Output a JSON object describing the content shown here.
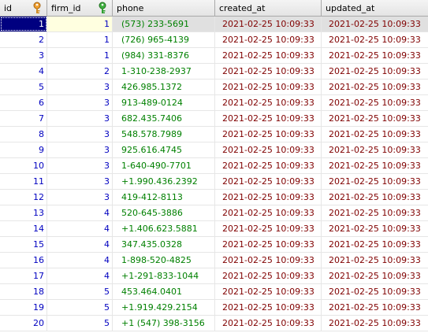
{
  "table": {
    "columns": {
      "id": "id",
      "firm_id": "firm_id",
      "phone": "phone",
      "created_at": "created_at",
      "updated_at": "updated_at"
    },
    "primary_key_icon": "primary-key-icon",
    "foreign_key_icon": "foreign-key-icon",
    "rows": [
      {
        "id": "1",
        "firm_id": "1",
        "phone": "(573) 233-5691",
        "created_at": "2021-02-25 10:09:33",
        "updated_at": "2021-02-25 10:09:33"
      },
      {
        "id": "2",
        "firm_id": "1",
        "phone": "(726) 965-4139",
        "created_at": "2021-02-25 10:09:33",
        "updated_at": "2021-02-25 10:09:33"
      },
      {
        "id": "3",
        "firm_id": "1",
        "phone": "(984) 331-8376",
        "created_at": "2021-02-25 10:09:33",
        "updated_at": "2021-02-25 10:09:33"
      },
      {
        "id": "4",
        "firm_id": "2",
        "phone": "1-310-238-2937",
        "created_at": "2021-02-25 10:09:33",
        "updated_at": "2021-02-25 10:09:33"
      },
      {
        "id": "5",
        "firm_id": "3",
        "phone": "426.985.1372",
        "created_at": "2021-02-25 10:09:33",
        "updated_at": "2021-02-25 10:09:33"
      },
      {
        "id": "6",
        "firm_id": "3",
        "phone": "913-489-0124",
        "created_at": "2021-02-25 10:09:33",
        "updated_at": "2021-02-25 10:09:33"
      },
      {
        "id": "7",
        "firm_id": "3",
        "phone": "682.435.7406",
        "created_at": "2021-02-25 10:09:33",
        "updated_at": "2021-02-25 10:09:33"
      },
      {
        "id": "8",
        "firm_id": "3",
        "phone": "548.578.7989",
        "created_at": "2021-02-25 10:09:33",
        "updated_at": "2021-02-25 10:09:33"
      },
      {
        "id": "9",
        "firm_id": "3",
        "phone": "925.616.4745",
        "created_at": "2021-02-25 10:09:33",
        "updated_at": "2021-02-25 10:09:33"
      },
      {
        "id": "10",
        "firm_id": "3",
        "phone": "1-640-490-7701",
        "created_at": "2021-02-25 10:09:33",
        "updated_at": "2021-02-25 10:09:33"
      },
      {
        "id": "11",
        "firm_id": "3",
        "phone": "+1.990.436.2392",
        "created_at": "2021-02-25 10:09:33",
        "updated_at": "2021-02-25 10:09:33"
      },
      {
        "id": "12",
        "firm_id": "3",
        "phone": "419-412-8113",
        "created_at": "2021-02-25 10:09:33",
        "updated_at": "2021-02-25 10:09:33"
      },
      {
        "id": "13",
        "firm_id": "4",
        "phone": "520-645-3886",
        "created_at": "2021-02-25 10:09:33",
        "updated_at": "2021-02-25 10:09:33"
      },
      {
        "id": "14",
        "firm_id": "4",
        "phone": "+1.406.623.5881",
        "created_at": "2021-02-25 10:09:33",
        "updated_at": "2021-02-25 10:09:33"
      },
      {
        "id": "15",
        "firm_id": "4",
        "phone": "347.435.0328",
        "created_at": "2021-02-25 10:09:33",
        "updated_at": "2021-02-25 10:09:33"
      },
      {
        "id": "16",
        "firm_id": "4",
        "phone": "1-898-520-4825",
        "created_at": "2021-02-25 10:09:33",
        "updated_at": "2021-02-25 10:09:33"
      },
      {
        "id": "17",
        "firm_id": "4",
        "phone": "+1-291-833-1044",
        "created_at": "2021-02-25 10:09:33",
        "updated_at": "2021-02-25 10:09:33"
      },
      {
        "id": "18",
        "firm_id": "5",
        "phone": "453.464.0401",
        "created_at": "2021-02-25 10:09:33",
        "updated_at": "2021-02-25 10:09:33"
      },
      {
        "id": "19",
        "firm_id": "5",
        "phone": "+1.919.429.2154",
        "created_at": "2021-02-25 10:09:33",
        "updated_at": "2021-02-25 10:09:33"
      },
      {
        "id": "20",
        "firm_id": "5",
        "phone": "+1 (547) 398-3156",
        "created_at": "2021-02-25 10:09:33",
        "updated_at": "2021-02-25 10:09:33"
      }
    ]
  },
  "colors": {
    "id_text": "#0000c0",
    "phone_text": "#008000",
    "date_text": "#800000",
    "selection": "#000080",
    "primary_key": "#f0a030",
    "foreign_key": "#40b040"
  }
}
